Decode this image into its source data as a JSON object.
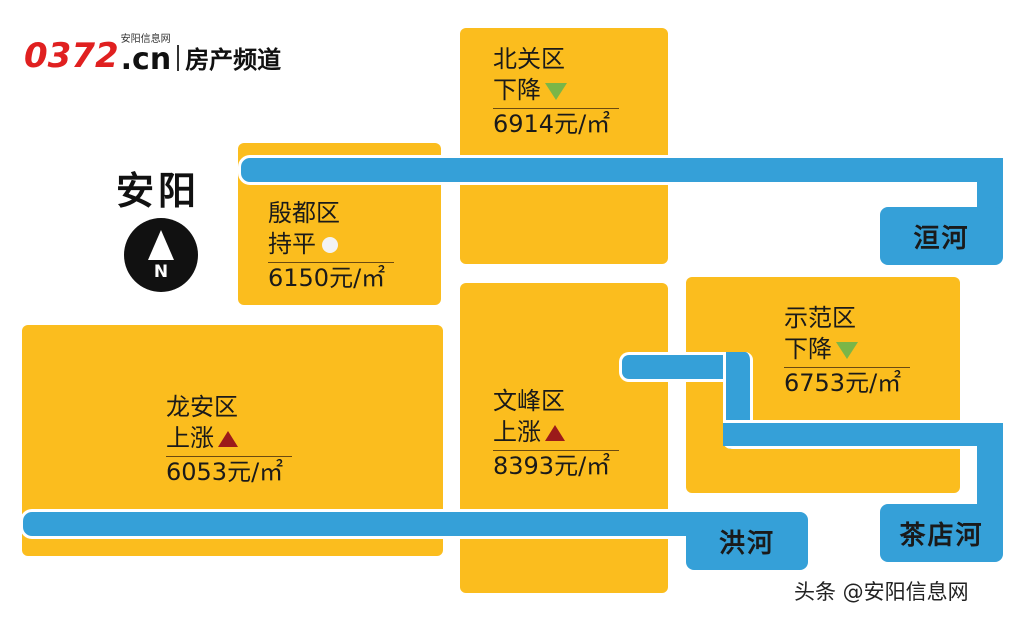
{
  "logo": {
    "brand": "0372",
    "domain": ".cn",
    "site_name": "安阳信息网",
    "channel": "房产频道"
  },
  "city": "安阳",
  "compass": {
    "letter": "N"
  },
  "districts": [
    {
      "name": "北关区",
      "trend": "下降",
      "trend_dir": "down",
      "price": "6914元/㎡"
    },
    {
      "name": "殷都区",
      "trend": "持平",
      "trend_dir": "flat",
      "price": "6150元/㎡"
    },
    {
      "name": "龙安区",
      "trend": "上涨",
      "trend_dir": "up",
      "price": "6053元/㎡"
    },
    {
      "name": "文峰区",
      "trend": "上涨",
      "trend_dir": "up",
      "price": "8393元/㎡"
    },
    {
      "name": "示范区",
      "trend": "下降",
      "trend_dir": "down",
      "price": "6753元/㎡"
    }
  ],
  "rivers": [
    "洹河",
    "洪河",
    "茶店河"
  ],
  "footer": "头条 @安阳信息网",
  "colors": {
    "district": "#fbbd1e",
    "river": "#35a0d8",
    "down": "#7ab648",
    "up": "#9b1a1a",
    "brand": "#e02020"
  }
}
